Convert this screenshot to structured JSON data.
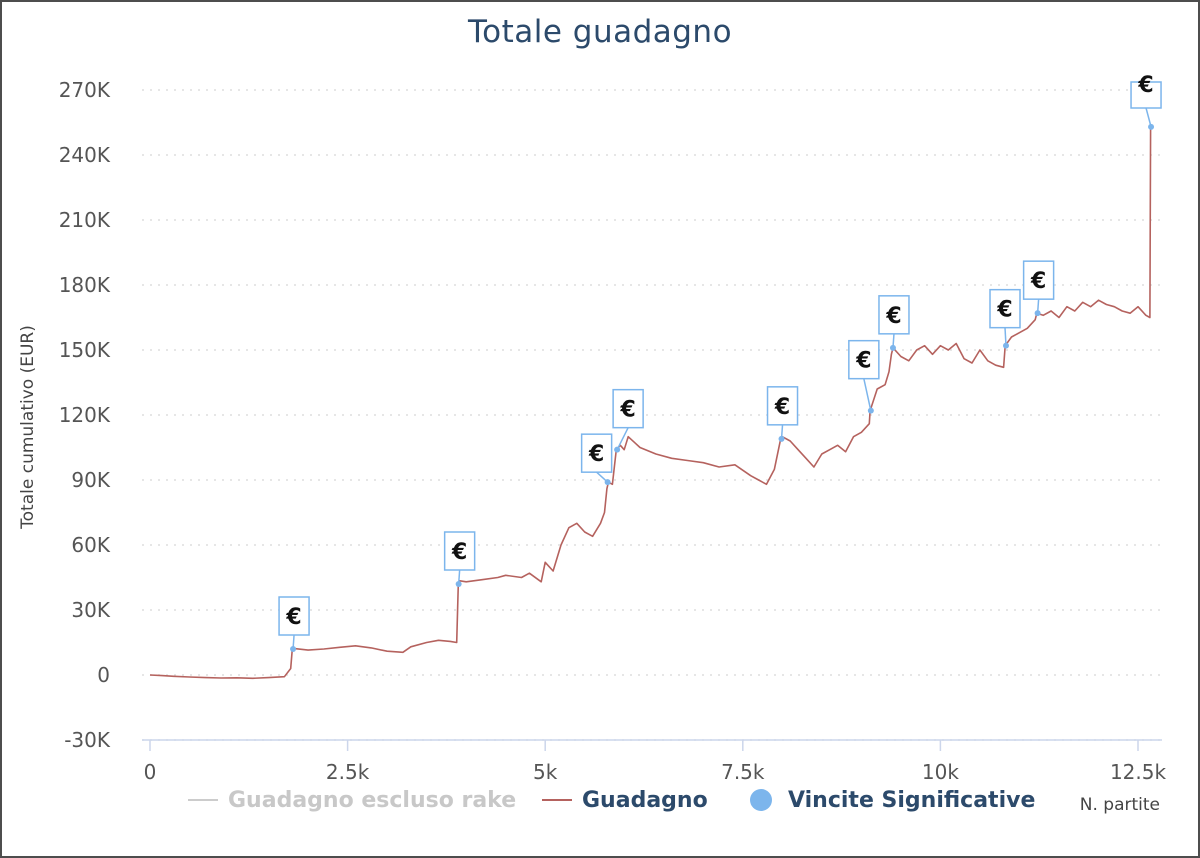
{
  "title": "Totale guadagno",
  "colors": {
    "gain_line": "#b5625e",
    "rake_line": "#cccccc",
    "marker": "#7cb5ec",
    "title": "#2c4a6b",
    "grid": "#dddddd",
    "axis": "#ccd6eb"
  },
  "legend": {
    "rake_label": "Guadagno escluso rake",
    "gain_label": "Guadagno",
    "wins_label": "Vincite Significative"
  },
  "chart_data": {
    "type": "line",
    "title": "Totale guadagno",
    "xlabel": "N. partite",
    "ylabel": "Totale cumulativo (EUR)",
    "xlim": [
      -50,
      12700
    ],
    "ylim": [
      -30000,
      270000
    ],
    "x_ticks": [
      0,
      2500,
      5000,
      7500,
      10000,
      12500
    ],
    "x_tick_labels": [
      "0",
      "2.5k",
      "5k",
      "7.5k",
      "10k",
      "12.5k"
    ],
    "y_ticks": [
      -30000,
      0,
      30000,
      60000,
      90000,
      120000,
      150000,
      180000,
      210000,
      240000,
      270000
    ],
    "y_tick_labels": [
      "-30K",
      "0",
      "30K",
      "60K",
      "90K",
      "120K",
      "150K",
      "180K",
      "210K",
      "240K",
      "270K"
    ],
    "grid": true,
    "legend_position": "bottom",
    "series": [
      {
        "name": "Guadagno",
        "x": [
          0,
          150,
          300,
          500,
          700,
          900,
          1100,
          1300,
          1500,
          1700,
          1780,
          1800,
          1830,
          2000,
          2200,
          2400,
          2600,
          2800,
          3000,
          3200,
          3300,
          3500,
          3650,
          3800,
          3880,
          3900,
          3920,
          4000,
          4200,
          4400,
          4500,
          4700,
          4800,
          4950,
          5000,
          5100,
          5200,
          5300,
          5400,
          5500,
          5550,
          5600,
          5700,
          5750,
          5780,
          5800,
          5850,
          5900,
          5950,
          6000,
          6050,
          6200,
          6400,
          6600,
          6800,
          7000,
          7200,
          7400,
          7600,
          7700,
          7800,
          7900,
          7980,
          8000,
          8100,
          8200,
          8300,
          8400,
          8500,
          8600,
          8700,
          8800,
          8900,
          9000,
          9100,
          9110,
          9200,
          9300,
          9350,
          9380,
          9400,
          9500,
          9600,
          9700,
          9800,
          9900,
          10000,
          10100,
          10200,
          10300,
          10400,
          10500,
          10600,
          10700,
          10800,
          10820,
          10900,
          11000,
          11100,
          11200,
          11220,
          11300,
          11400,
          11500,
          11600,
          11700,
          11800,
          11900,
          12000,
          12100,
          12200,
          12300,
          12400,
          12500,
          12600,
          12650,
          12660,
          12670
        ],
        "values": [
          0,
          -300,
          -600,
          -900,
          -1200,
          -1400,
          -1300,
          -1500,
          -1200,
          -800,
          3000,
          12000,
          12200,
          11500,
          12000,
          12800,
          13500,
          12500,
          11000,
          10500,
          13000,
          15000,
          16000,
          15500,
          15000,
          42000,
          43500,
          43000,
          44000,
          45000,
          46000,
          45000,
          47000,
          43000,
          52000,
          48000,
          60000,
          68000,
          70000,
          66000,
          65000,
          64000,
          70000,
          75000,
          86000,
          89000,
          88000,
          104000,
          106000,
          104000,
          110000,
          105000,
          102000,
          100000,
          99000,
          98000,
          96000,
          97000,
          92000,
          90000,
          88000,
          95000,
          109000,
          110000,
          108000,
          104000,
          100000,
          96000,
          102000,
          104000,
          106000,
          103000,
          110000,
          112000,
          116000,
          122000,
          132000,
          134000,
          140000,
          148000,
          151000,
          147000,
          145000,
          150000,
          152000,
          148000,
          152000,
          150000,
          153000,
          146000,
          144000,
          150000,
          145000,
          143000,
          142000,
          152000,
          156000,
          158000,
          160000,
          164000,
          167000,
          166000,
          168000,
          165000,
          170000,
          168000,
          172000,
          170000,
          173000,
          171000,
          170000,
          168000,
          167000,
          170000,
          166000,
          165000,
          253000,
          253000
        ]
      },
      {
        "name": "Vincite Significative",
        "symbol": "€",
        "x": [
          1810,
          3905,
          5790,
          5910,
          7990,
          9120,
          9400,
          10830,
          11230,
          12665
        ],
        "values": [
          12000,
          42000,
          89000,
          104000,
          109000,
          122000,
          151000,
          152000,
          167000,
          253000
        ]
      }
    ]
  }
}
